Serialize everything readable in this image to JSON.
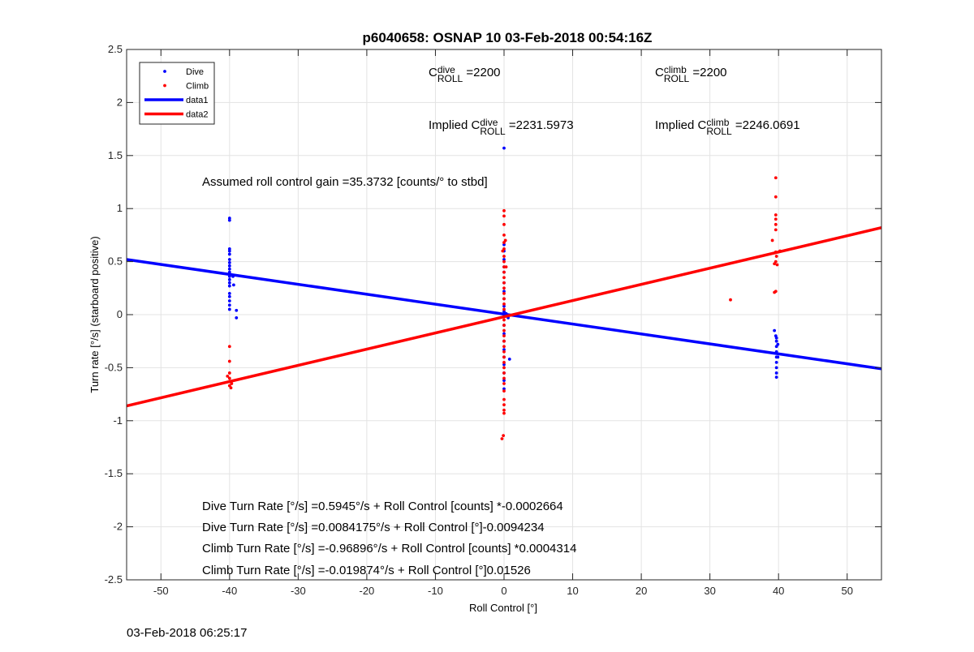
{
  "chart_data": {
    "type": "scatter",
    "title": "p6040658: OSNAP 10 03-Feb-2018 00:54:16Z",
    "xlabel": "Roll Control [°]",
    "ylabel": "Turn rate [°/s] (starboard positive)",
    "xlim": [
      -55,
      55
    ],
    "ylim": [
      -2.5,
      2.5
    ],
    "x_ticks": [
      -50,
      -40,
      -30,
      -20,
      -10,
      0,
      10,
      20,
      30,
      40,
      50
    ],
    "y_ticks": [
      -2.5,
      -2,
      -1.5,
      -1,
      -0.5,
      0,
      0.5,
      1,
      1.5,
      2,
      2.5
    ],
    "grid": true,
    "legend_position": "top-left",
    "legend": [
      {
        "label": "Dive",
        "kind": "dot",
        "color": "#0000ff"
      },
      {
        "label": "Climb",
        "kind": "dot",
        "color": "#ff0000"
      },
      {
        "label": "data1",
        "kind": "line",
        "color": "#0000ff"
      },
      {
        "label": "data2",
        "kind": "line",
        "color": "#ff0000"
      }
    ],
    "series": [
      {
        "name": "Dive",
        "kind": "scatter",
        "color": "#0000ff",
        "points": [
          [
            -40,
            0.91
          ],
          [
            -40,
            0.89
          ],
          [
            -40,
            0.62
          ],
          [
            -40,
            0.6
          ],
          [
            -40,
            0.57
          ],
          [
            -40,
            0.52
          ],
          [
            -40,
            0.49
          ],
          [
            -40,
            0.46
          ],
          [
            -40,
            0.43
          ],
          [
            -40,
            0.4
          ],
          [
            -40,
            0.36
          ],
          [
            -40,
            0.33
          ],
          [
            -40,
            0.3
          ],
          [
            -40,
            0.27
          ],
          [
            -40,
            0.2
          ],
          [
            -40,
            0.17
          ],
          [
            -40,
            0.13
          ],
          [
            -40,
            0.09
          ],
          [
            -40,
            0.05
          ],
          [
            -39.5,
            0.36
          ],
          [
            -39.4,
            0.28
          ],
          [
            -39,
            0.04
          ],
          [
            -39,
            -0.03
          ],
          [
            0,
            1.57
          ],
          [
            0,
            0.66
          ],
          [
            0,
            0.6
          ],
          [
            0,
            0.52
          ],
          [
            0,
            0.45
          ],
          [
            0,
            0.4
          ],
          [
            0,
            0.3
          ],
          [
            0,
            0.22
          ],
          [
            0,
            0.15
          ],
          [
            0,
            0.08
          ],
          [
            0,
            0.03
          ],
          [
            0,
            -0.02
          ],
          [
            0,
            -0.1
          ],
          [
            0,
            -0.18
          ],
          [
            0,
            -0.25
          ],
          [
            0,
            -0.33
          ],
          [
            0,
            -0.4
          ],
          [
            0,
            -0.47
          ],
          [
            0,
            -0.55
          ],
          [
            0,
            -0.62
          ],
          [
            0,
            -0.7
          ],
          [
            0.3,
            0.01
          ],
          [
            0.6,
            -0.03
          ],
          [
            0.8,
            -0.42
          ],
          [
            39.4,
            -0.15
          ],
          [
            39.6,
            -0.2
          ],
          [
            39.7,
            -0.22
          ],
          [
            39.7,
            -0.25
          ],
          [
            39.7,
            -0.3
          ],
          [
            39.7,
            -0.35
          ],
          [
            39.7,
            -0.4
          ],
          [
            39.7,
            -0.45
          ],
          [
            39.7,
            -0.5
          ],
          [
            39.7,
            -0.55
          ],
          [
            39.7,
            -0.59
          ],
          [
            39.9,
            -0.28
          ],
          [
            39.9,
            -0.4
          ]
        ]
      },
      {
        "name": "Climb",
        "kind": "scatter",
        "color": "#ff0000",
        "points": [
          [
            -40,
            -0.3
          ],
          [
            -40,
            -0.44
          ],
          [
            -40,
            -0.55
          ],
          [
            -40,
            -0.6
          ],
          [
            -40,
            -0.63
          ],
          [
            -40,
            -0.67
          ],
          [
            -40.3,
            -0.58
          ],
          [
            -39.7,
            -0.65
          ],
          [
            -39.8,
            -0.69
          ],
          [
            0,
            0.98
          ],
          [
            0,
            0.93
          ],
          [
            0,
            0.85
          ],
          [
            0,
            0.75
          ],
          [
            0,
            0.68
          ],
          [
            0,
            0.62
          ],
          [
            0,
            0.55
          ],
          [
            0,
            0.5
          ],
          [
            0,
            0.45
          ],
          [
            0,
            0.4
          ],
          [
            0,
            0.35
          ],
          [
            0,
            0.3
          ],
          [
            0,
            0.25
          ],
          [
            0,
            0.2
          ],
          [
            0,
            0.15
          ],
          [
            0,
            0.1
          ],
          [
            0,
            0.05
          ],
          [
            0,
            0.0
          ],
          [
            0,
            -0.05
          ],
          [
            0,
            -0.1
          ],
          [
            0,
            -0.15
          ],
          [
            0,
            -0.2
          ],
          [
            0,
            -0.25
          ],
          [
            0,
            -0.3
          ],
          [
            0,
            -0.35
          ],
          [
            0,
            -0.4
          ],
          [
            0,
            -0.45
          ],
          [
            0,
            -0.5
          ],
          [
            0,
            -0.55
          ],
          [
            0,
            -0.6
          ],
          [
            0,
            -0.65
          ],
          [
            0,
            -0.72
          ],
          [
            0,
            -0.8
          ],
          [
            0,
            -0.85
          ],
          [
            0,
            -0.9
          ],
          [
            0,
            -0.93
          ],
          [
            -0.3,
            -1.17
          ],
          [
            -0.1,
            -1.14
          ],
          [
            0.2,
            0.7
          ],
          [
            -0.2,
            0.6
          ],
          [
            0.3,
            0.45
          ],
          [
            33,
            0.14
          ],
          [
            39.6,
            1.29
          ],
          [
            39.6,
            1.11
          ],
          [
            39.6,
            0.94
          ],
          [
            39.6,
            0.9
          ],
          [
            39.6,
            0.85
          ],
          [
            39.6,
            0.8
          ],
          [
            39.1,
            0.7
          ],
          [
            39.6,
            0.59
          ],
          [
            39.7,
            0.55
          ],
          [
            39.6,
            0.5
          ],
          [
            39.4,
            0.48
          ],
          [
            39.8,
            0.47
          ],
          [
            39.6,
            0.22
          ],
          [
            39.4,
            0.21
          ],
          [
            40.2,
            0.6
          ]
        ]
      },
      {
        "name": "data1",
        "kind": "line",
        "color": "#0000ff",
        "x": [
          -55,
          55
        ],
        "y": [
          0.52,
          -0.51
        ]
      },
      {
        "name": "data2",
        "kind": "line",
        "color": "#ff0000",
        "x": [
          -55,
          55
        ],
        "y": [
          -0.86,
          0.82
        ]
      }
    ]
  },
  "annotations": {
    "c_roll_dive": {
      "prefix": "C",
      "sup": "dive",
      "sub": "ROLL",
      "value": "=2200"
    },
    "c_roll_climb": {
      "prefix": "C",
      "sup": "climb",
      "sub": "ROLL",
      "value": "=2200"
    },
    "implied_dive": {
      "prefix": "Implied C",
      "sup": "dive",
      "sub": "ROLL",
      "value": "=2231.5973"
    },
    "implied_climb": {
      "prefix": "Implied C",
      "sup": "climb",
      "sub": "ROLL",
      "value": "=2246.0691"
    },
    "gain": "Assumed roll control gain =35.3732 [counts/° to stbd]",
    "dive_rate_counts": "Dive Turn Rate [°/s] =0.5945°/s + Roll Control [counts] *-0.0002664",
    "dive_rate_deg": "Dive Turn Rate [°/s] =0.0084175°/s + Roll Control [°]-0.0094234",
    "climb_rate_counts": "Climb Turn Rate [°/s] =-0.96896°/s + Roll Control [counts] *0.0004314",
    "climb_rate_deg": "Climb Turn Rate [°/s] =-0.019874°/s + Roll Control [°]0.01526"
  },
  "footer": {
    "timestamp": "03-Feb-2018 06:25:17"
  }
}
